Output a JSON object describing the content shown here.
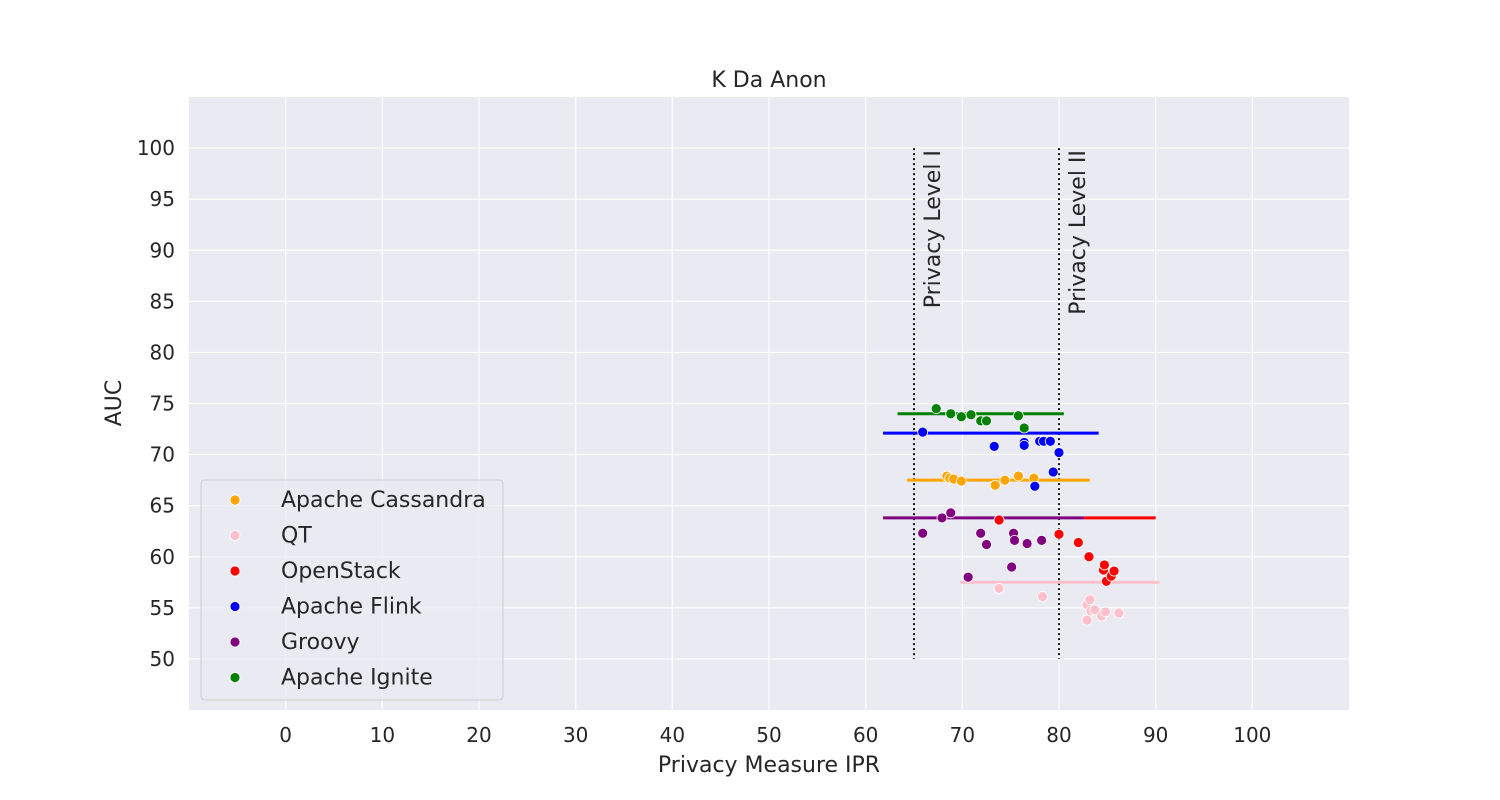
{
  "chart_data": {
    "type": "scatter",
    "title": "K Da Anon",
    "xlabel": "Privacy Measure IPR",
    "ylabel": "AUC",
    "xlim": [
      -10,
      110
    ],
    "ylim": [
      45,
      105
    ],
    "xticks": [
      0,
      10,
      20,
      30,
      40,
      50,
      60,
      70,
      80,
      90,
      100
    ],
    "yticks": [
      50,
      55,
      60,
      65,
      70,
      75,
      80,
      85,
      90,
      95,
      100
    ],
    "grid": true,
    "legend_position": "lower-left",
    "reference_lines": [
      {
        "label": "Privacy Level I",
        "x": 65,
        "y_range": [
          50,
          100
        ],
        "style": "dotted"
      },
      {
        "label": "Privacy Level II",
        "x": 80,
        "y_range": [
          50,
          100
        ],
        "style": "dotted"
      }
    ],
    "series": [
      {
        "name": "Apache Cassandra",
        "color": "#FFA500",
        "points": [
          [
            68.4,
            67.9
          ],
          [
            68.7,
            67.7
          ],
          [
            69.1,
            67.6
          ],
          [
            69.9,
            67.4
          ],
          [
            73.4,
            67.0
          ],
          [
            74.4,
            67.5
          ],
          [
            75.8,
            67.9
          ],
          [
            77.4,
            67.7
          ]
        ],
        "mean_line": {
          "y": 67.5,
          "x_range": [
            64.3,
            83.2
          ]
        }
      },
      {
        "name": "QT",
        "color": "#FFC0CB",
        "points": [
          [
            73.8,
            56.9
          ],
          [
            78.3,
            56.1
          ],
          [
            82.9,
            55.3
          ],
          [
            83.2,
            55.8
          ],
          [
            83.3,
            54.7
          ],
          [
            83.7,
            54.8
          ],
          [
            82.9,
            53.8
          ],
          [
            84.4,
            54.2
          ],
          [
            84.8,
            54.6
          ],
          [
            86.2,
            54.5
          ]
        ],
        "mean_line": {
          "y": 57.5,
          "x_range": [
            69.8,
            90.4
          ]
        }
      },
      {
        "name": "OpenStack",
        "color": "#FF0000",
        "points": [
          [
            73.8,
            63.6
          ],
          [
            80.0,
            62.2
          ],
          [
            82.0,
            61.4
          ],
          [
            83.1,
            60.0
          ],
          [
            84.6,
            58.7
          ],
          [
            84.7,
            59.2
          ],
          [
            84.9,
            57.6
          ],
          [
            85.4,
            58.1
          ],
          [
            85.7,
            58.6
          ]
        ],
        "mean_line": {
          "y": 63.8,
          "x_range": [
            82.6,
            90.0
          ]
        }
      },
      {
        "name": "Apache Flink",
        "color": "#0000FF",
        "points": [
          [
            65.9,
            72.2
          ],
          [
            73.3,
            70.8
          ],
          [
            76.4,
            71.2
          ],
          [
            76.4,
            70.9
          ],
          [
            78.0,
            71.3
          ],
          [
            78.4,
            71.3
          ],
          [
            79.1,
            71.3
          ],
          [
            80.0,
            70.2
          ],
          [
            79.4,
            68.3
          ],
          [
            77.5,
            66.9
          ]
        ],
        "mean_line": {
          "y": 72.1,
          "x_range": [
            61.8,
            84.1
          ]
        }
      },
      {
        "name": "Groovy",
        "color": "#800080",
        "points": [
          [
            65.9,
            62.3
          ],
          [
            67.9,
            63.8
          ],
          [
            68.8,
            64.3
          ],
          [
            71.9,
            62.3
          ],
          [
            72.5,
            61.2
          ],
          [
            75.3,
            62.3
          ],
          [
            75.4,
            61.6
          ],
          [
            76.7,
            61.3
          ],
          [
            78.2,
            61.6
          ],
          [
            75.1,
            59.0
          ],
          [
            70.6,
            58.0
          ]
        ],
        "mean_line": {
          "y": 63.8,
          "x_range": [
            61.8,
            82.6
          ]
        }
      },
      {
        "name": "Apache Ignite",
        "color": "#008000",
        "points": [
          [
            67.3,
            74.5
          ],
          [
            68.8,
            74.0
          ],
          [
            69.9,
            73.7
          ],
          [
            70.9,
            73.9
          ],
          [
            71.9,
            73.3
          ],
          [
            72.5,
            73.3
          ],
          [
            75.8,
            73.8
          ],
          [
            76.4,
            72.6
          ]
        ],
        "mean_line": {
          "y": 74.0,
          "x_range": [
            63.3,
            80.5
          ]
        }
      }
    ]
  }
}
